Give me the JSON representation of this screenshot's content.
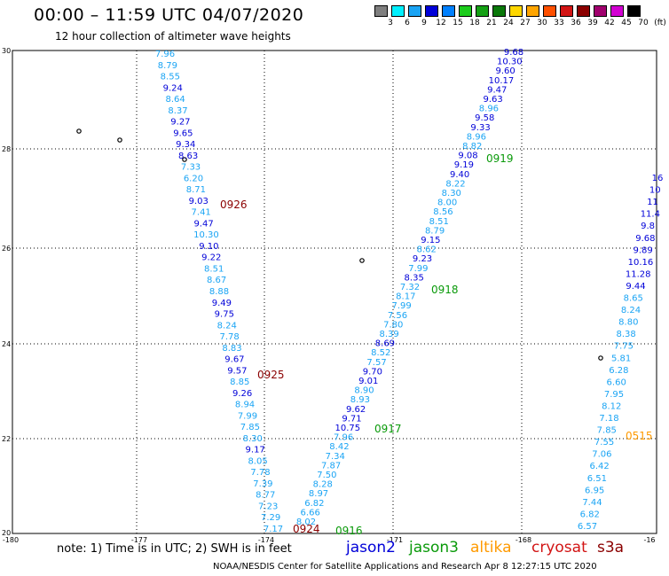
{
  "header": {
    "title": "00:00 – 11:59 UTC 04/07/2020",
    "subtitle": "12 hour collection of altimeter wave heights"
  },
  "color_scale": {
    "labels": [
      "3",
      "6",
      "9",
      "12",
      "15",
      "18",
      "21",
      "24",
      "27",
      "30",
      "33",
      "36",
      "39",
      "42",
      "45",
      "70",
      "(ft)"
    ],
    "colors": [
      "#7f7f7f",
      "#00f0ff",
      "#1aa4f4",
      "#0000d8",
      "#0080ff",
      "#1ccc1c",
      "#14a014",
      "#0a780a",
      "#ffd700",
      "#ffa500",
      "#ff5000",
      "#d21414",
      "#8b0000",
      "#a0006e",
      "#d200d2",
      "#000000"
    ]
  },
  "series_colors": {
    "jason2": "#0000d8",
    "jason3": "#0a9a0a",
    "altika": "#ff9a00",
    "cryosat": "#d21414",
    "s3a": "#8b0000",
    "light": "#1aa4f4"
  },
  "axes": {
    "lat_labels": [
      "30",
      "28",
      "26",
      "24",
      "22",
      "20"
    ],
    "lon_labels": [
      "-180",
      "-177",
      "-174",
      "-171",
      "-168",
      "-16"
    ]
  },
  "track_a": {
    "values": [
      "7.96",
      "8.79",
      "8.55",
      "9.24",
      "8.64",
      "8.37",
      "9.27",
      "9.65",
      "9.34",
      "8.63",
      "7.33",
      "6.20",
      "8.71",
      "9.03",
      "7.41",
      "9.47",
      "10.30",
      "9.10",
      "9.22",
      "8.51",
      "8.67",
      "8.88",
      "9.49",
      "9.75",
      "8.24",
      "7.78",
      "8.83",
      "9.67",
      "9.57",
      "8.85",
      "9.26",
      "8.94",
      "7.99",
      "7.85",
      "8.30",
      "9.17",
      "8.05",
      "7.78",
      "7.39",
      "8.77",
      "7.23",
      "7.29",
      "7.17"
    ],
    "colors": [
      "L",
      "L",
      "L",
      "D",
      "L",
      "L",
      "D",
      "D",
      "D",
      "D",
      "L",
      "L",
      "L",
      "D",
      "L",
      "D",
      "L",
      "D",
      "D",
      "L",
      "L",
      "L",
      "D",
      "D",
      "L",
      "L",
      "L",
      "D",
      "D",
      "L",
      "D",
      "L",
      "L",
      "L",
      "L",
      "D",
      "L",
      "L",
      "L",
      "L",
      "L",
      "L",
      "L"
    ]
  },
  "track_b": {
    "values": [
      "9.68",
      "10.30",
      "9.60",
      "10.17",
      "9.47",
      "9.63",
      "8.96",
      "9.58",
      "9.33",
      "8.96",
      "8.82",
      "9.08",
      "9.19",
      "9.40",
      "8.22",
      "8.30",
      "8.00",
      "8.56",
      "8.51",
      "8.79",
      "9.15",
      "8.62",
      "9.23",
      "7.99",
      "8.35",
      "7.32",
      "8.17",
      "7.99",
      "7.56",
      "7.80",
      "8.39",
      "8.69",
      "8.52",
      "7.57",
      "9.70",
      "9.01",
      "8.90",
      "8.93",
      "9.62",
      "9.71",
      "10.75",
      "7.96",
      "8.42",
      "7.34",
      "7.87",
      "7.50",
      "8.28",
      "8.97",
      "6.82",
      "6.66",
      "8.02"
    ],
    "colors": [
      "D",
      "D",
      "D",
      "D",
      "D",
      "D",
      "L",
      "D",
      "D",
      "L",
      "L",
      "D",
      "D",
      "D",
      "L",
      "L",
      "L",
      "L",
      "L",
      "L",
      "D",
      "L",
      "D",
      "L",
      "D",
      "L",
      "L",
      "L",
      "L",
      "L",
      "L",
      "D",
      "L",
      "L",
      "D",
      "D",
      "L",
      "L",
      "D",
      "D",
      "D",
      "L",
      "L",
      "L",
      "L",
      "L",
      "L",
      "L",
      "L",
      "L",
      "L"
    ]
  },
  "track_c": {
    "values": [
      "16",
      "10",
      "11",
      "11.4",
      "9.8",
      "9.68",
      "9.89",
      "10.16",
      "11.28",
      "9.44",
      "8.65",
      "8.24",
      "8.80",
      "8.38",
      "7.75",
      "5.81",
      "6.28",
      "6.60",
      "7.95",
      "8.12",
      "7.18",
      "7.85",
      "7.55",
      "7.06",
      "6.42",
      "6.51",
      "6.95",
      "7.44",
      "6.82",
      "6.57"
    ],
    "colors": [
      "D",
      "D",
      "D",
      "D",
      "D",
      "D",
      "D",
      "D",
      "D",
      "D",
      "L",
      "L",
      "L",
      "L",
      "L",
      "L",
      "L",
      "L",
      "L",
      "L",
      "L",
      "L",
      "L",
      "L",
      "L",
      "L",
      "L",
      "L",
      "L",
      "L"
    ]
  },
  "time_labels": [
    {
      "text": "0926",
      "sat": "s3a"
    },
    {
      "text": "0925",
      "sat": "s3a"
    },
    {
      "text": "0924",
      "sat": "s3a"
    },
    {
      "text": "0919",
      "sat": "jason3"
    },
    {
      "text": "0918",
      "sat": "jason3"
    },
    {
      "text": "0917",
      "sat": "jason3"
    },
    {
      "text": "0916",
      "sat": "jason3"
    },
    {
      "text": "0515",
      "sat": "altika"
    }
  ],
  "legend": {
    "note": "note:  1) Time is in UTC;  2) SWH is in feet",
    "jason2": "jason2",
    "jason3": "jason3",
    "altika": "altika",
    "cryosat": "cryosat",
    "s3a": "s3a"
  },
  "footer": {
    "credit": "NOAA/NESDIS Center for Satellite Applications and Research     Apr  8 12:27:15 UTC 2020"
  }
}
